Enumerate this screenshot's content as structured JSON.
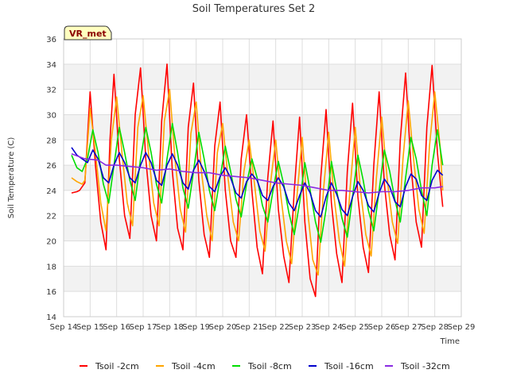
{
  "chart_data": {
    "type": "line",
    "title": "Soil Temperatures Set 2",
    "xlabel": "Time",
    "ylabel": "Soil Temperature (C)",
    "badge": "VR_met",
    "ylim": [
      14,
      36
    ],
    "yticks": [
      14,
      16,
      18,
      20,
      22,
      24,
      26,
      28,
      30,
      32,
      34,
      36
    ],
    "xlim": [
      14,
      29
    ],
    "xticks": [
      {
        "x": 14,
        "label": "Sep 14"
      },
      {
        "x": 15,
        "label": "Sep 15"
      },
      {
        "x": 16,
        "label": "Sep 16"
      },
      {
        "x": 17,
        "label": "Sep 17"
      },
      {
        "x": 18,
        "label": "Sep 18"
      },
      {
        "x": 19,
        "label": "Sep 19"
      },
      {
        "x": 20,
        "label": "Sep 20"
      },
      {
        "x": 21,
        "label": "Sep 21"
      },
      {
        "x": 22,
        "label": "Sep 22"
      },
      {
        "x": 23,
        "label": "Sep 23"
      },
      {
        "x": 24,
        "label": "Sep 24"
      },
      {
        "x": 25,
        "label": "Sep 25"
      },
      {
        "x": 26,
        "label": "Sep 26"
      },
      {
        "x": 27,
        "label": "Sep 27"
      },
      {
        "x": 28,
        "label": "Sep 28"
      },
      {
        "x": 29,
        "label": "Sep 29"
      }
    ],
    "grid": true,
    "legend_position": "bottom",
    "series": [
      {
        "name": "Tsoil -2cm",
        "color": "#ff0000",
        "x": [
          14.3,
          14.5,
          14.6,
          14.8,
          15.0,
          15.2,
          15.4,
          15.6,
          15.75,
          15.9,
          16.1,
          16.3,
          16.5,
          16.7,
          16.9,
          17.1,
          17.3,
          17.5,
          17.7,
          17.9,
          18.1,
          18.3,
          18.5,
          18.7,
          18.9,
          19.1,
          19.3,
          19.5,
          19.7,
          19.9,
          20.1,
          20.3,
          20.5,
          20.7,
          20.9,
          21.1,
          21.3,
          21.5,
          21.7,
          21.9,
          22.1,
          22.3,
          22.5,
          22.7,
          22.9,
          23.1,
          23.3,
          23.5,
          23.7,
          23.9,
          24.1,
          24.3,
          24.5,
          24.7,
          24.9,
          25.1,
          25.3,
          25.5,
          25.7,
          25.9,
          26.1,
          26.3,
          26.5,
          26.7,
          26.9,
          27.1,
          27.3,
          27.5,
          27.7,
          27.9,
          28.1,
          28.3
        ],
        "y": [
          23.8,
          23.9,
          24.0,
          24.6,
          31.8,
          26.0,
          21.5,
          19.3,
          28.0,
          33.2,
          26.5,
          22.0,
          20.2,
          30.0,
          33.7,
          26.5,
          22.0,
          20.0,
          29.5,
          34.0,
          25.5,
          21.0,
          19.3,
          29.0,
          32.5,
          24.8,
          20.5,
          18.7,
          27.5,
          31.0,
          24.0,
          20.0,
          18.7,
          26.5,
          30.0,
          24.0,
          19.5,
          17.4,
          25.0,
          29.5,
          22.5,
          18.8,
          16.7,
          24.0,
          29.8,
          21.5,
          17.0,
          15.6,
          25.0,
          30.4,
          23.0,
          19.0,
          16.7,
          25.5,
          30.9,
          23.5,
          19.5,
          17.5,
          26.0,
          31.8,
          24.5,
          20.5,
          18.5,
          28.0,
          33.3,
          26.0,
          21.5,
          19.5,
          29.0,
          33.9,
          27.0,
          22.7
        ]
      },
      {
        "name": "Tsoil -4cm",
        "color": "#ffa500",
        "x": [
          14.3,
          14.5,
          14.7,
          14.8,
          15.0,
          15.2,
          15.4,
          15.6,
          15.8,
          16.0,
          16.2,
          16.4,
          16.6,
          16.8,
          17.0,
          17.2,
          17.4,
          17.6,
          17.8,
          18.0,
          18.2,
          18.4,
          18.6,
          18.8,
          19.0,
          19.2,
          19.4,
          19.6,
          19.8,
          20.0,
          20.2,
          20.4,
          20.6,
          20.8,
          21.0,
          21.2,
          21.4,
          21.6,
          21.8,
          22.0,
          22.2,
          22.4,
          22.6,
          22.8,
          23.0,
          23.2,
          23.4,
          23.6,
          23.8,
          24.0,
          24.2,
          24.4,
          24.6,
          24.8,
          25.0,
          25.2,
          25.4,
          25.6,
          25.8,
          26.0,
          26.2,
          26.4,
          26.6,
          26.8,
          27.0,
          27.2,
          27.4,
          27.6,
          27.8,
          28.0,
          28.2,
          28.3
        ],
        "y": [
          25.0,
          24.7,
          24.5,
          24.8,
          30.5,
          27.0,
          23.0,
          20.8,
          28.0,
          31.4,
          27.0,
          23.0,
          21.2,
          29.0,
          31.5,
          27.0,
          23.0,
          21.2,
          29.5,
          32.0,
          26.5,
          22.5,
          20.7,
          28.5,
          31.0,
          25.5,
          22.0,
          20.0,
          27.0,
          29.3,
          25.0,
          21.5,
          20.0,
          25.5,
          28.0,
          24.5,
          20.8,
          19.2,
          24.5,
          28.0,
          23.5,
          20.0,
          18.2,
          23.5,
          28.2,
          22.5,
          18.5,
          17.3,
          24.0,
          28.6,
          23.5,
          20.0,
          18.0,
          24.0,
          29.0,
          24.0,
          20.5,
          18.8,
          25.0,
          29.8,
          25.0,
          21.5,
          19.8,
          26.5,
          31.1,
          26.5,
          22.5,
          20.6,
          27.5,
          31.8,
          27.5,
          24.0
        ]
      },
      {
        "name": "Tsoil -8cm",
        "color": "#00dd00",
        "x": [
          14.3,
          14.5,
          14.7,
          14.9,
          15.1,
          15.3,
          15.5,
          15.7,
          15.9,
          16.1,
          16.3,
          16.5,
          16.7,
          16.9,
          17.1,
          17.3,
          17.5,
          17.7,
          17.9,
          18.1,
          18.3,
          18.5,
          18.7,
          18.9,
          19.1,
          19.3,
          19.5,
          19.7,
          19.9,
          20.1,
          20.3,
          20.5,
          20.7,
          20.9,
          21.1,
          21.3,
          21.5,
          21.7,
          21.9,
          22.1,
          22.3,
          22.5,
          22.7,
          22.9,
          23.1,
          23.3,
          23.5,
          23.7,
          23.9,
          24.1,
          24.3,
          24.5,
          24.7,
          24.9,
          25.1,
          25.3,
          25.5,
          25.7,
          25.9,
          26.1,
          26.3,
          26.5,
          26.7,
          26.9,
          27.1,
          27.3,
          27.5,
          27.7,
          27.9,
          28.1,
          28.3
        ],
        "y": [
          26.8,
          25.8,
          25.5,
          26.5,
          28.8,
          27.0,
          24.5,
          23.0,
          26.0,
          29.0,
          27.0,
          24.8,
          23.2,
          26.5,
          29.0,
          27.0,
          24.5,
          23.0,
          26.5,
          29.3,
          27.0,
          24.2,
          22.6,
          25.5,
          28.6,
          26.5,
          24.0,
          22.4,
          25.0,
          27.5,
          25.5,
          23.3,
          21.9,
          24.5,
          26.5,
          25.0,
          22.8,
          21.5,
          24.0,
          26.3,
          24.5,
          22.2,
          20.5,
          23.0,
          26.2,
          24.0,
          21.5,
          19.9,
          22.5,
          26.3,
          24.0,
          21.8,
          20.3,
          23.5,
          26.8,
          24.8,
          22.4,
          20.8,
          24.0,
          27.2,
          25.5,
          23.2,
          21.5,
          25.0,
          28.2,
          26.5,
          24.0,
          22.0,
          26.0,
          28.8,
          26.0
        ]
      },
      {
        "name": "Tsoil -16cm",
        "color": "#0000cc",
        "x": [
          14.3,
          14.5,
          14.7,
          14.9,
          15.1,
          15.3,
          15.5,
          15.7,
          15.9,
          16.1,
          16.3,
          16.5,
          16.7,
          16.9,
          17.1,
          17.3,
          17.5,
          17.7,
          17.9,
          18.1,
          18.3,
          18.5,
          18.7,
          18.9,
          19.1,
          19.3,
          19.5,
          19.7,
          19.9,
          20.1,
          20.3,
          20.5,
          20.7,
          20.9,
          21.1,
          21.3,
          21.5,
          21.7,
          21.9,
          22.1,
          22.3,
          22.5,
          22.7,
          22.9,
          23.1,
          23.3,
          23.5,
          23.7,
          23.9,
          24.1,
          24.3,
          24.5,
          24.7,
          24.9,
          25.1,
          25.3,
          25.5,
          25.7,
          25.9,
          26.1,
          26.3,
          26.5,
          26.7,
          26.9,
          27.1,
          27.3,
          27.5,
          27.7,
          27.9,
          28.1,
          28.3
        ],
        "y": [
          27.4,
          26.8,
          26.5,
          26.2,
          27.2,
          26.5,
          25.0,
          24.6,
          26.0,
          27.0,
          26.2,
          25.0,
          24.6,
          26.0,
          27.0,
          26.2,
          24.8,
          24.4,
          26.0,
          26.9,
          26.0,
          24.6,
          24.1,
          25.6,
          26.4,
          25.5,
          24.3,
          23.9,
          25.1,
          25.8,
          25.0,
          23.8,
          23.4,
          24.7,
          25.3,
          24.8,
          23.6,
          23.2,
          24.3,
          25.0,
          24.3,
          23.0,
          22.4,
          23.6,
          24.6,
          23.8,
          22.4,
          21.9,
          23.5,
          24.6,
          23.7,
          22.5,
          22.0,
          23.5,
          24.7,
          24.0,
          22.8,
          22.3,
          23.8,
          24.9,
          24.3,
          23.1,
          22.7,
          24.3,
          25.3,
          24.9,
          23.6,
          23.2,
          24.8,
          25.6,
          25.2
        ]
      },
      {
        "name": "Tsoil -32cm",
        "color": "#8a2be2",
        "x": [
          14.3,
          14.8,
          15.3,
          15.6,
          16.0,
          16.5,
          17.0,
          17.5,
          18.0,
          18.5,
          19.0,
          19.5,
          20.0,
          20.5,
          21.0,
          21.5,
          22.0,
          22.5,
          23.0,
          23.5,
          24.0,
          24.5,
          25.0,
          25.5,
          26.0,
          26.5,
          27.0,
          27.5,
          28.0,
          28.3
        ],
        "y": [
          26.9,
          26.5,
          26.4,
          26.0,
          26.0,
          25.9,
          25.8,
          25.6,
          25.7,
          25.5,
          25.4,
          25.4,
          25.2,
          25.1,
          25.0,
          24.8,
          24.6,
          24.5,
          24.4,
          24.2,
          24.0,
          24.0,
          23.9,
          23.8,
          23.9,
          23.9,
          24.0,
          24.2,
          24.2,
          24.3
        ]
      }
    ]
  }
}
